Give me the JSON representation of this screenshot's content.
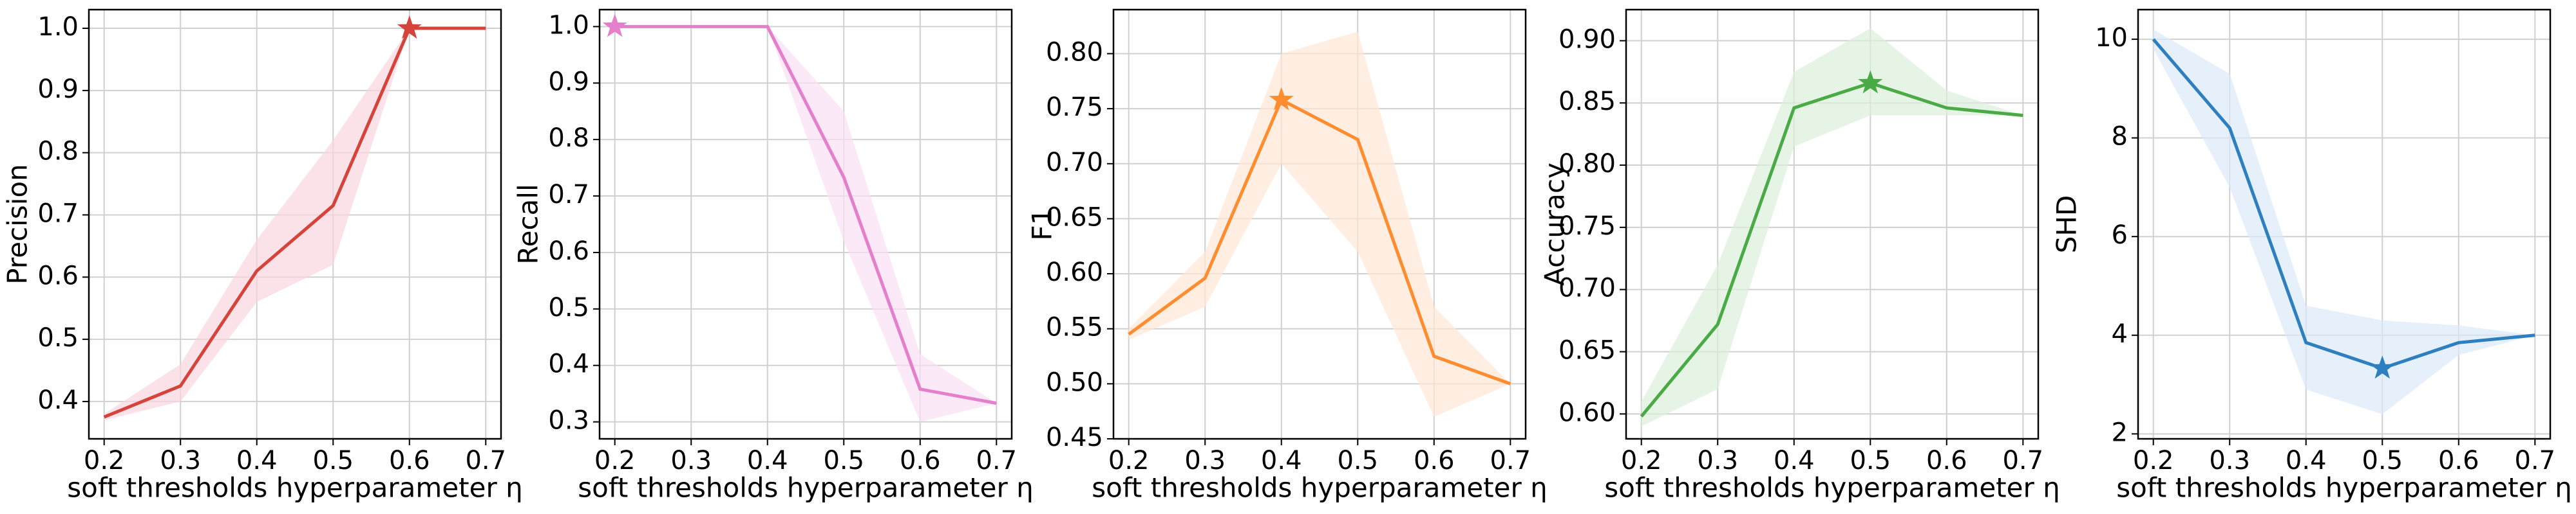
{
  "chart_data": [
    {
      "type": "line",
      "ylabel": "Precision",
      "xlabel": "soft thresholds hyperparameter η",
      "x": [
        0.2,
        0.3,
        0.4,
        0.5,
        0.6,
        0.7
      ],
      "values": [
        0.375,
        0.425,
        0.61,
        0.715,
        1.0,
        1.0
      ],
      "lower": [
        0.37,
        0.4,
        0.56,
        0.62,
        1.0,
        1.0
      ],
      "upper": [
        0.38,
        0.46,
        0.66,
        0.82,
        1.0,
        1.0
      ],
      "color": "#d4443a",
      "band_color": "#f9d6de",
      "highlight_index": 4,
      "xlim": [
        0.18,
        0.72
      ],
      "xticks": [
        0.2,
        0.3,
        0.4,
        0.5,
        0.6,
        0.7
      ],
      "ylim": [
        0.34,
        1.03
      ],
      "yticks": [
        0.4,
        0.5,
        0.6,
        0.7,
        0.8,
        0.9,
        {
          "value": 1,
          "label": "1.0"
        }
      ],
      "grid": true
    },
    {
      "type": "line",
      "ylabel": "Recall",
      "xlabel": "soft thresholds hyperparameter η",
      "x": [
        0.2,
        0.3,
        0.4,
        0.5,
        0.6,
        0.7
      ],
      "values": [
        1.0,
        1.0,
        1.0,
        0.733,
        0.358,
        0.333
      ],
      "lower": [
        1.0,
        1.0,
        1.0,
        0.62,
        0.3,
        0.333
      ],
      "upper": [
        1.0,
        1.0,
        1.0,
        0.85,
        0.42,
        0.333
      ],
      "color": "#e57fcb",
      "band_color": "#fbe0f3",
      "highlight_index": 0,
      "xlim": [
        0.18,
        0.72
      ],
      "xticks": [
        0.2,
        0.3,
        0.4,
        0.5,
        0.6,
        0.7
      ],
      "ylim": [
        0.27,
        1.03
      ],
      "yticks": [
        0.3,
        0.4,
        0.5,
        0.6,
        0.7,
        0.8,
        0.9,
        {
          "value": 1,
          "label": "1.0"
        }
      ],
      "grid": true
    },
    {
      "type": "line",
      "ylabel": "F1",
      "xlabel": "soft thresholds hyperparameter η",
      "x": [
        0.2,
        0.3,
        0.4,
        0.5,
        0.6,
        0.7
      ],
      "values": [
        0.545,
        0.596,
        0.758,
        0.722,
        0.525,
        0.5
      ],
      "lower": [
        0.54,
        0.57,
        0.7,
        0.62,
        0.47,
        0.5
      ],
      "upper": [
        0.55,
        0.62,
        0.8,
        0.82,
        0.57,
        0.5
      ],
      "color": "#ff8c2e",
      "band_color": "#ffe7d4",
      "highlight_index": 2,
      "xlim": [
        0.18,
        0.72
      ],
      "xticks": [
        0.2,
        0.3,
        0.4,
        0.5,
        0.6,
        0.7
      ],
      "ylim": [
        0.45,
        0.84
      ],
      "yticks": [
        0.45,
        {
          "value": 0.5,
          "label": "0.50"
        },
        0.55,
        {
          "value": 0.6,
          "label": "0.60"
        },
        0.65,
        {
          "value": 0.7,
          "label": "0.70"
        },
        0.75,
        {
          "value": 0.8,
          "label": "0.80"
        }
      ],
      "grid": true
    },
    {
      "type": "line",
      "ylabel": "Accuracy",
      "xlabel": "soft thresholds hyperparameter η",
      "x": [
        0.2,
        0.3,
        0.4,
        0.5,
        0.6,
        0.7
      ],
      "values": [
        0.598,
        0.672,
        0.846,
        0.866,
        0.846,
        0.84
      ],
      "lower": [
        0.59,
        0.62,
        0.815,
        0.84,
        0.84,
        0.84
      ],
      "upper": [
        0.61,
        0.72,
        0.875,
        0.91,
        0.86,
        0.84
      ],
      "color": "#4aaa45",
      "band_color": "#dcf0dc",
      "highlight_index": 3,
      "xlim": [
        0.18,
        0.72
      ],
      "xticks": [
        0.2,
        0.3,
        0.4,
        0.5,
        0.6,
        0.7
      ],
      "ylim": [
        0.58,
        0.925
      ],
      "yticks": [
        {
          "value": 0.6,
          "label": "0.60"
        },
        0.65,
        {
          "value": 0.7,
          "label": "0.70"
        },
        0.75,
        {
          "value": 0.8,
          "label": "0.80"
        },
        0.85,
        {
          "value": 0.9,
          "label": "0.90"
        }
      ],
      "grid": true
    },
    {
      "type": "line",
      "ylabel": "SHD",
      "xlabel": "soft thresholds hyperparameter η",
      "x": [
        0.2,
        0.3,
        0.4,
        0.5,
        0.6,
        0.7
      ],
      "values": [
        10.0,
        8.2,
        3.85,
        3.33,
        3.85,
        4.0
      ],
      "lower": [
        9.8,
        7.0,
        2.9,
        2.4,
        3.6,
        4.0
      ],
      "upper": [
        10.2,
        9.3,
        4.6,
        4.3,
        4.2,
        4.0
      ],
      "color": "#2d7fc0",
      "band_color": "#dce9f9",
      "highlight_index": 3,
      "xlim": [
        0.18,
        0.72
      ],
      "xticks": [
        0.2,
        0.3,
        0.4,
        0.5,
        0.6,
        0.7
      ],
      "ylim": [
        1.9,
        10.6
      ],
      "yticks": [
        2,
        4,
        6,
        8,
        10
      ],
      "grid": true
    }
  ]
}
